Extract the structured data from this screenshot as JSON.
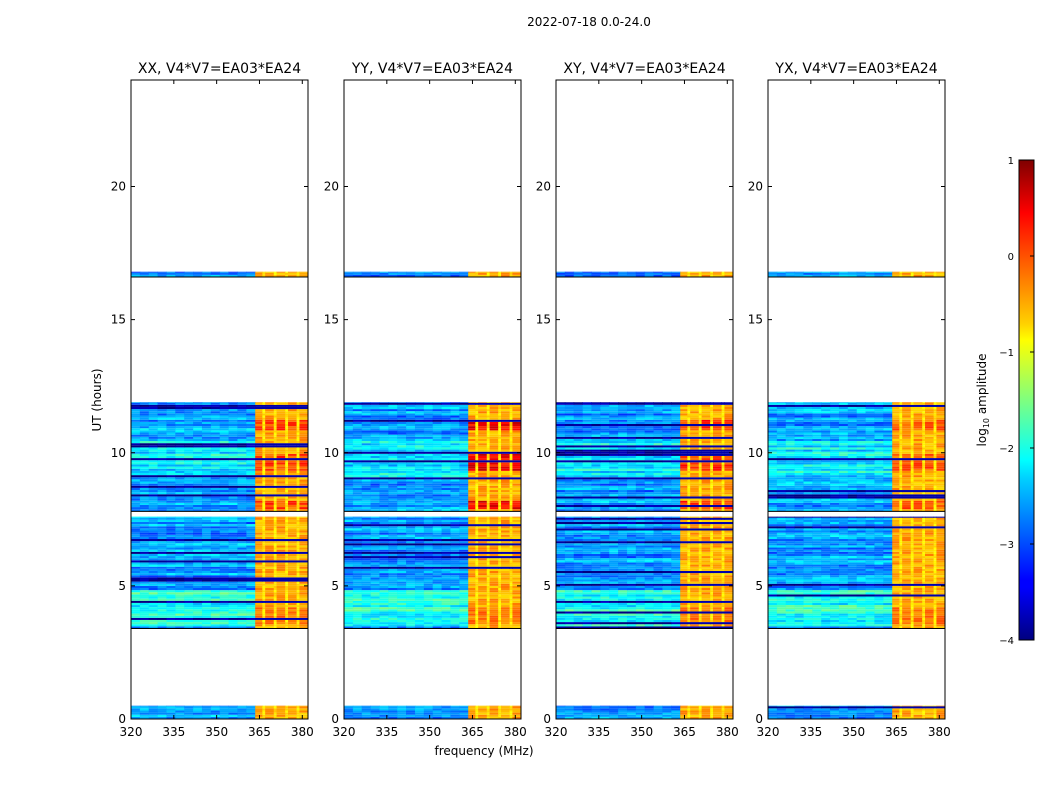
{
  "chart_data": {
    "type": "heatmap",
    "suptitle": "2022-07-18 0.0-24.0",
    "xlabel": "frequency (MHz)",
    "ylabel": "UT (hours)",
    "xlim": [
      320,
      382
    ],
    "ylim": [
      0,
      24
    ],
    "x_ticks": [
      "320",
      "335",
      "350",
      "365",
      "380"
    ],
    "x_tick_values": [
      320,
      335,
      350,
      365,
      380
    ],
    "y_ticks": [
      "0",
      "5",
      "10",
      "15",
      "20"
    ],
    "y_tick_values": [
      0,
      5,
      10,
      15,
      20
    ],
    "colorbar": {
      "label_prefix": "log",
      "label_sub": "10",
      "label_suffix": " amplitude",
      "range": [
        -4,
        1
      ],
      "ticks": [
        "1",
        "0",
        "−1",
        "−2",
        "−3",
        "−4"
      ],
      "tick_values": [
        1,
        0,
        -1,
        -2,
        -3,
        -4
      ]
    },
    "data_segments_hours": [
      [
        0.0,
        0.5
      ],
      [
        3.4,
        7.6
      ],
      [
        7.8,
        11.9
      ],
      [
        16.6,
        16.8
      ]
    ],
    "rfi_band_mhz": [
      363.5,
      382
    ],
    "panels": [
      {
        "title": "XX, V4*V7=EA03*EA24",
        "peak": 0.3
      },
      {
        "title": "YY, V4*V7=EA03*EA24",
        "peak": 0.7
      },
      {
        "title": "XY, V4*V7=EA03*EA24",
        "peak": 0.4
      },
      {
        "title": "YX, V4*V7=EA03*EA24",
        "peak": 0.2
      }
    ]
  }
}
